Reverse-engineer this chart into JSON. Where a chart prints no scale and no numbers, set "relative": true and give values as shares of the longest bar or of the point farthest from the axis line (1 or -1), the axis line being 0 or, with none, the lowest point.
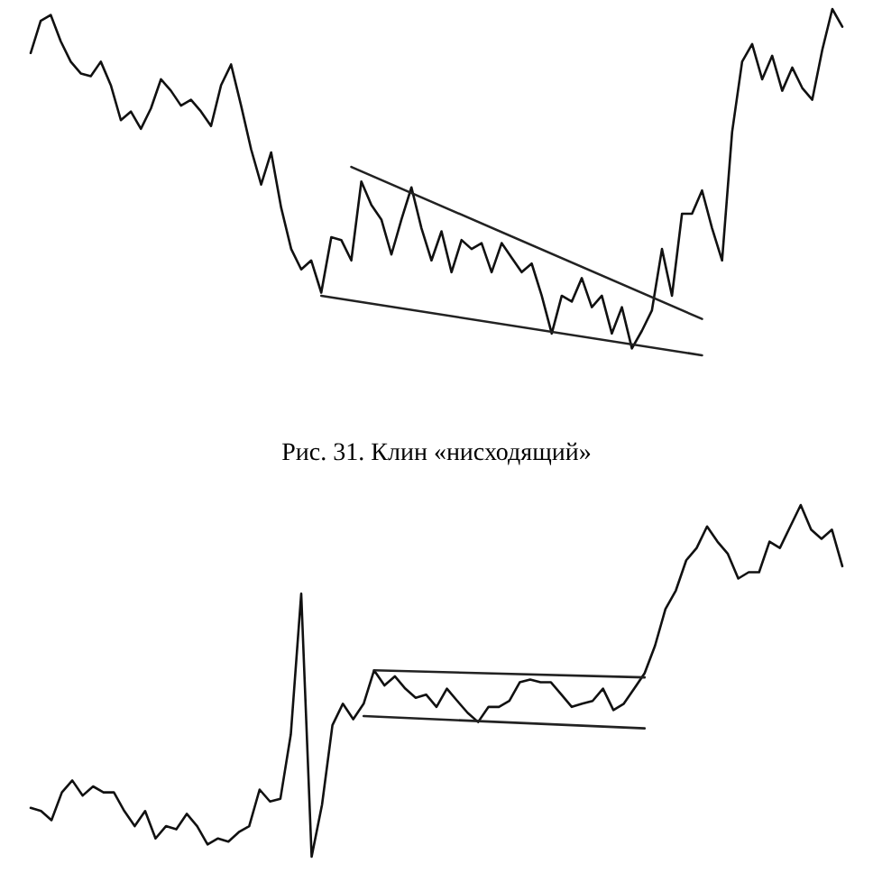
{
  "chart_data": [
    {
      "type": "line",
      "relative": true,
      "tick_labels": false,
      "annotations": [
        "Рис. 31. Клин «нисходящий»"
      ],
      "categories": [
        null,
        null,
        null,
        null,
        null,
        null,
        null,
        null,
        null,
        null,
        null,
        null,
        null,
        null,
        null,
        null,
        null,
        null,
        null,
        null,
        null,
        null,
        null,
        null,
        null,
        null,
        null,
        null,
        null,
        null,
        null,
        null,
        null,
        null,
        null,
        null,
        null,
        null,
        null,
        null,
        null,
        null,
        null,
        null,
        null,
        null,
        null,
        null,
        null,
        null,
        null,
        null,
        null,
        null,
        null,
        null,
        null,
        null,
        null,
        null,
        null,
        null,
        null,
        null,
        null,
        null,
        null,
        null,
        null,
        null,
        null,
        null,
        null,
        null,
        null,
        null,
        null,
        null,
        null,
        null,
        null,
        null
      ],
      "series": [
        {
          "color": "#111111",
          "values": [
            0.873,
            0.966,
            0.983,
            0.907,
            0.848,
            0.814,
            0.806,
            0.848,
            0.78,
            0.679,
            0.704,
            0.654,
            0.713,
            0.797,
            0.764,
            0.721,
            0.738,
            0.704,
            0.662,
            0.78,
            0.84,
            0.721,
            0.595,
            0.493,
            0.586,
            0.426,
            0.307,
            0.248,
            0.274,
            0.181,
            0.341,
            0.333,
            0.274,
            0.502,
            0.434,
            0.392,
            0.291,
            0.392,
            0.485,
            0.367,
            0.274,
            0.358,
            0.24,
            0.333,
            0.307,
            0.324,
            0.24,
            0.324,
            0.282,
            0.24,
            0.265,
            0.172,
            0.063,
            0.172,
            0.155,
            0.223,
            0.139,
            0.172,
            0.063,
            0.139,
            0.02,
            0.071,
            0.13,
            0.307,
            0.172,
            0.409,
            0.409,
            0.476,
            0.367,
            0.274,
            0.645,
            0.848,
            0.899,
            0.797,
            0.865,
            0.764,
            0.831,
            0.772,
            0.738,
            0.882,
            1,
            0.949
          ]
        },
        {
          "color": "#222222",
          "values": [
            null,
            null,
            null,
            null,
            null,
            null,
            null,
            null,
            null,
            null,
            null,
            null,
            null,
            null,
            null,
            null,
            null,
            null,
            null,
            null,
            null,
            null,
            null,
            null,
            null,
            null,
            null,
            null,
            null,
            null,
            null,
            null,
            0.544,
            null,
            null,
            null,
            null,
            null,
            null,
            null,
            null,
            null,
            null,
            null,
            null,
            null,
            null,
            null,
            null,
            null,
            null,
            null,
            null,
            null,
            null,
            null,
            null,
            null,
            null,
            null,
            null,
            null,
            null,
            null,
            null,
            null,
            null,
            0.105,
            null,
            null,
            null,
            null,
            null,
            null,
            null,
            null,
            null,
            null,
            null,
            null,
            null,
            null
          ]
        },
        {
          "color": "#222222",
          "values": [
            null,
            null,
            null,
            null,
            null,
            null,
            null,
            null,
            null,
            null,
            null,
            null,
            null,
            null,
            null,
            null,
            null,
            null,
            null,
            null,
            null,
            null,
            null,
            null,
            null,
            null,
            null,
            null,
            null,
            0.172,
            null,
            null,
            null,
            null,
            null,
            null,
            null,
            null,
            null,
            null,
            null,
            null,
            null,
            null,
            null,
            null,
            null,
            null,
            null,
            null,
            null,
            null,
            null,
            null,
            null,
            null,
            null,
            null,
            null,
            null,
            null,
            null,
            null,
            null,
            null,
            null,
            null,
            0,
            null,
            null,
            null,
            null,
            null,
            null,
            null,
            null,
            null,
            null,
            null,
            null,
            null,
            null
          ]
        }
      ]
    },
    {
      "type": "line",
      "relative": true,
      "tick_labels": false,
      "categories": [
        null,
        null,
        null,
        null,
        null,
        null,
        null,
        null,
        null,
        null,
        null,
        null,
        null,
        null,
        null,
        null,
        null,
        null,
        null,
        null,
        null,
        null,
        null,
        null,
        null,
        null,
        null,
        null,
        null,
        null,
        null,
        null,
        null,
        null,
        null,
        null,
        null,
        null,
        null,
        null,
        null,
        null,
        null,
        null,
        null,
        null,
        null,
        null,
        null,
        null,
        null,
        null,
        null,
        null,
        null,
        null,
        null,
        null,
        null,
        null,
        null,
        null,
        null,
        null,
        null,
        null,
        null,
        null,
        null,
        null,
        null,
        null,
        null,
        null,
        null,
        null,
        null,
        null,
        null
      ],
      "series": [
        {
          "color": "#111111",
          "values": [
            0.139,
            0.13,
            0.104,
            0.183,
            0.217,
            0.174,
            0.2,
            0.183,
            0.183,
            0.13,
            0.087,
            0.13,
            0.052,
            0.087,
            0.078,
            0.122,
            0.087,
            0.035,
            0.052,
            0.043,
            0.07,
            0.087,
            0.191,
            0.157,
            0.165,
            0.348,
            0.748,
            0,
            0.148,
            0.374,
            0.435,
            0.391,
            0.435,
            0.53,
            0.487,
            0.513,
            0.478,
            0.452,
            0.461,
            0.426,
            0.478,
            0.443,
            0.409,
            0.383,
            0.426,
            0.426,
            0.443,
            0.496,
            0.504,
            0.496,
            0.496,
            0.461,
            0.426,
            0.435,
            0.443,
            0.478,
            0.417,
            0.435,
            0.478,
            0.522,
            0.6,
            0.704,
            0.757,
            0.843,
            0.878,
            0.939,
            0.896,
            0.861,
            0.791,
            0.809,
            0.809,
            0.896,
            0.878,
            0.939,
            1,
            0.93,
            0.904,
            0.93,
            0.826
          ]
        },
        {
          "color": "#222222",
          "values": [
            null,
            null,
            null,
            null,
            null,
            null,
            null,
            null,
            null,
            null,
            null,
            null,
            null,
            null,
            null,
            null,
            null,
            null,
            null,
            null,
            null,
            null,
            null,
            null,
            null,
            null,
            null,
            null,
            null,
            null,
            null,
            null,
            null,
            0.53,
            null,
            null,
            null,
            null,
            null,
            null,
            null,
            null,
            null,
            null,
            null,
            null,
            null,
            null,
            null,
            null,
            null,
            null,
            null,
            null,
            null,
            null,
            null,
            null,
            null,
            0.51,
            null,
            null,
            null,
            null,
            null,
            null,
            null,
            null,
            null,
            null,
            null,
            null,
            null,
            null,
            null,
            null,
            null,
            null,
            null
          ]
        },
        {
          "color": "#222222",
          "values": [
            null,
            null,
            null,
            null,
            null,
            null,
            null,
            null,
            null,
            null,
            null,
            null,
            null,
            null,
            null,
            null,
            null,
            null,
            null,
            null,
            null,
            null,
            null,
            null,
            null,
            null,
            null,
            null,
            null,
            null,
            null,
            null,
            0.4,
            null,
            null,
            null,
            null,
            null,
            null,
            null,
            null,
            null,
            null,
            null,
            null,
            null,
            null,
            null,
            null,
            null,
            null,
            null,
            null,
            null,
            null,
            null,
            null,
            null,
            null,
            0.365,
            null,
            null,
            null,
            null,
            null,
            null,
            null,
            null,
            null,
            null,
            null,
            null,
            null,
            null,
            null,
            null,
            null,
            null,
            null
          ]
        }
      ]
    }
  ]
}
